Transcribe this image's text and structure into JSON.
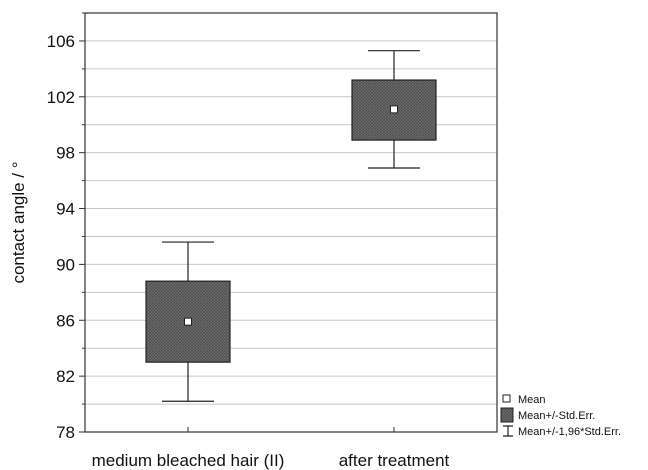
{
  "chart_data": {
    "type": "box",
    "ylabel": "contact angle / °",
    "xlabel": "",
    "ylim": [
      78,
      108
    ],
    "yticks": [
      "78",
      "82",
      "86",
      "90",
      "94",
      "98",
      "102",
      "106"
    ],
    "grid": true,
    "legend_position": "bottom-right outside plot",
    "legend": [
      {
        "symbol": "mean-marker",
        "label": "Mean"
      },
      {
        "symbol": "box",
        "label": "Mean+/-Std.Err."
      },
      {
        "symbol": "whisker",
        "label": "Mean+/-1,96*Std.Err."
      }
    ],
    "categories": [
      "medium bleached hair (II)",
      "after treatment"
    ],
    "series": [
      {
        "mean": 85.9,
        "box_low": 83.0,
        "box_high": 88.8,
        "whisker_low": 80.2,
        "whisker_high": 91.6
      },
      {
        "mean": 101.1,
        "box_low": 98.9,
        "box_high": 103.2,
        "whisker_low": 96.9,
        "whisker_high": 105.3
      }
    ],
    "colors": {
      "box_fill": "#6e6e6e",
      "box_stroke": "#222222",
      "grid": "#c8c8c8",
      "frame": "#333333"
    }
  }
}
